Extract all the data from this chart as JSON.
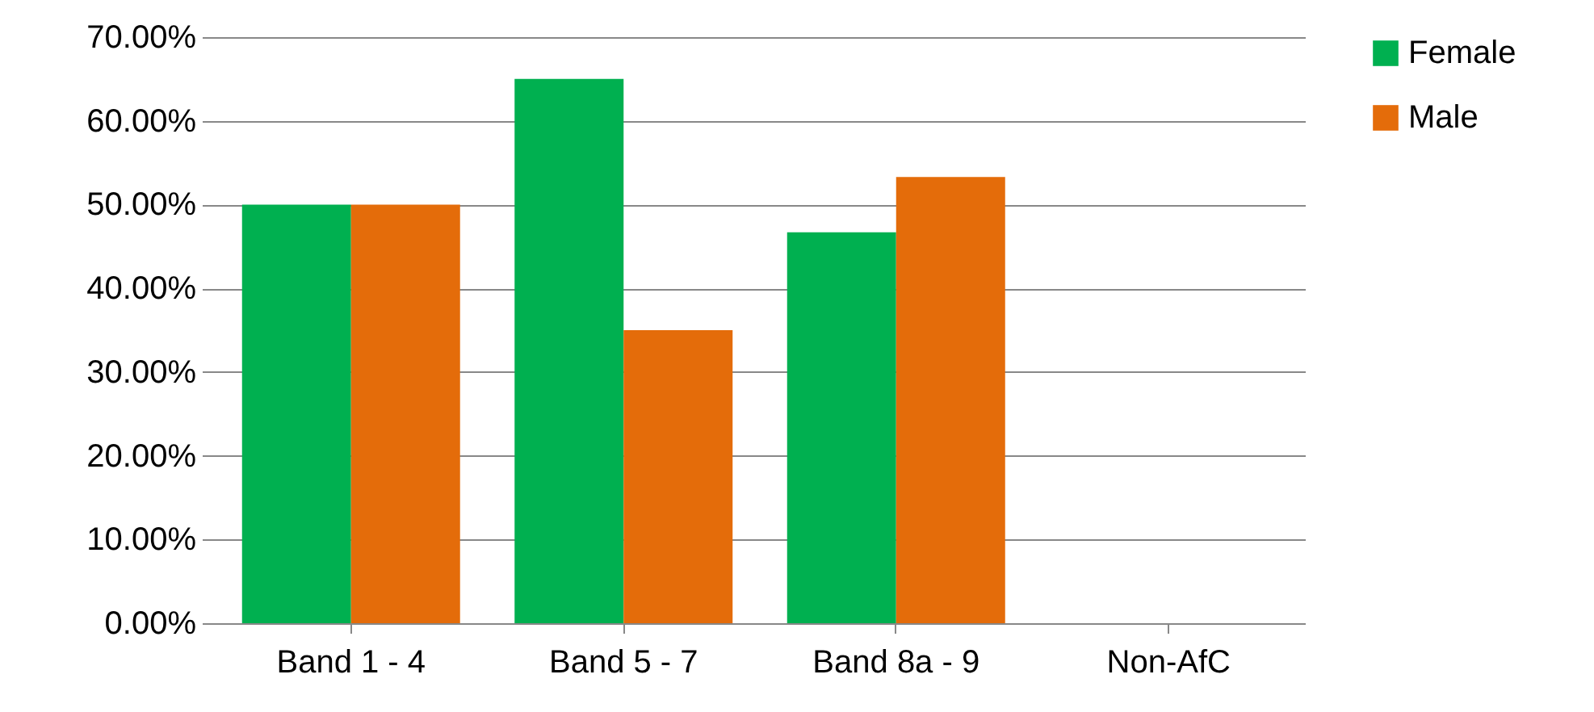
{
  "chart_data": {
    "type": "bar",
    "categories": [
      "Band 1 - 4",
      "Band 5 - 7",
      "Band 8a - 9",
      "Non-AfC"
    ],
    "series": [
      {
        "name": "Female",
        "color": "#00b050",
        "values": [
          50,
          65,
          46.7,
          0
        ]
      },
      {
        "name": "Male",
        "color": "#e46c0a",
        "values": [
          50,
          35,
          53.3,
          0
        ]
      }
    ],
    "ylim": [
      0,
      70
    ],
    "yticks": [
      {
        "value": 0,
        "label": "0.00%"
      },
      {
        "value": 10,
        "label": "10.00%"
      },
      {
        "value": 20,
        "label": "20.00%"
      },
      {
        "value": 30,
        "label": "30.00%"
      },
      {
        "value": 40,
        "label": "40.00%"
      },
      {
        "value": 50,
        "label": "50.00%"
      },
      {
        "value": 60,
        "label": "60.00%"
      },
      {
        "value": 70,
        "label": "70.00%"
      }
    ],
    "grid": "y",
    "legend": "right"
  }
}
